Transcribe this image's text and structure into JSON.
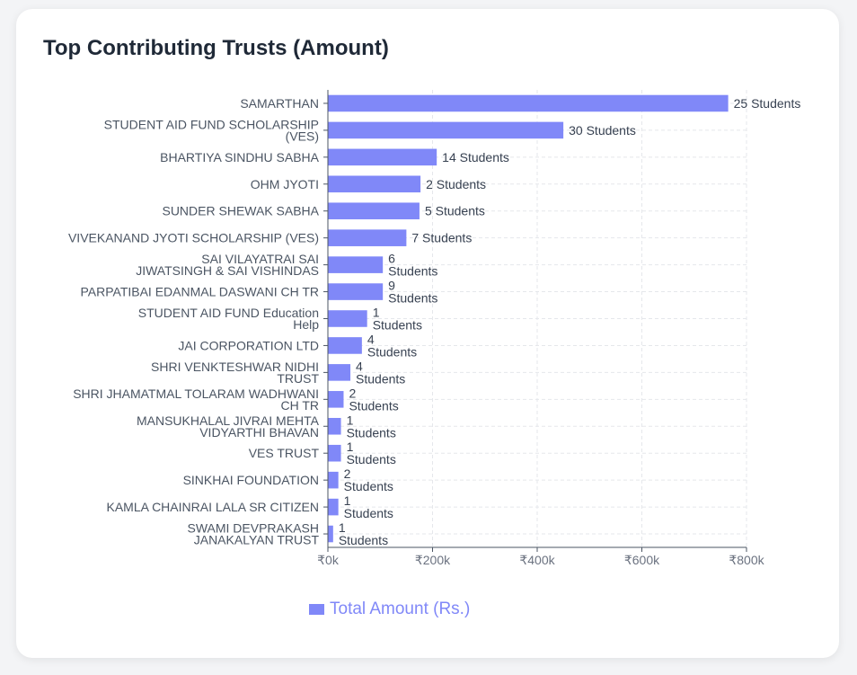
{
  "card": {
    "title": "Top Contributing Trusts (Amount)"
  },
  "legend": {
    "label": "Total Amount (Rs.)"
  },
  "colors": {
    "bar": "#8088f8",
    "grid": "#e5e7eb",
    "axis": "#4b5563",
    "label": "#4b5563",
    "tick": "#6b7280"
  },
  "chart_data": {
    "type": "bar",
    "orientation": "horizontal",
    "title": "Top Contributing Trusts (Amount)",
    "xlim": [
      0,
      800000
    ],
    "x_ticks": [
      {
        "value": 0,
        "label": "₹0k"
      },
      {
        "value": 200000,
        "label": "₹200k"
      },
      {
        "value": 400000,
        "label": "₹400k"
      },
      {
        "value": 600000,
        "label": "₹600k"
      },
      {
        "value": 800000,
        "label": "₹800k"
      }
    ],
    "grid": true,
    "legend_position": "bottom",
    "categories": [
      [
        "SAMARTHAN"
      ],
      [
        "STUDENT AID FUND SCHOLARSHIP",
        "(VES)"
      ],
      [
        "BHARTIYA SINDHU SABHA"
      ],
      [
        "OHM JYOTI"
      ],
      [
        "SUNDER SHEWAK SABHA"
      ],
      [
        "VIVEKANAND JYOTI SCHOLARSHIP (VES)"
      ],
      [
        "SAI VILAYATRAI SAI",
        "JIWATSINGH & SAI VISHINDAS"
      ],
      [
        "PARPATIBAI EDANMAL DASWANI CH TR"
      ],
      [
        "STUDENT AID FUND Education",
        "Help"
      ],
      [
        "JAI CORPORATION LTD"
      ],
      [
        "SHRI VENKTESHWAR NIDHI",
        "TRUST"
      ],
      [
        "SHRI JHAMATMAL TOLARAM WADHWANI",
        "CH TR"
      ],
      [
        "MANSUKHALAL JIVRAI MEHTA",
        "VIDYARTHI BHAVAN"
      ],
      [
        "VES TRUST"
      ],
      [
        "SINKHAI FOUNDATION"
      ],
      [
        "KAMLA CHAINRAI LALA SR CITIZEN"
      ],
      [
        "SWAMI DEVPRAKASH",
        "JANAKALYAN TRUST"
      ]
    ],
    "series": [
      {
        "name": "Total Amount (Rs.)",
        "values": [
          765000,
          450000,
          208000,
          177000,
          175000,
          150000,
          105000,
          105000,
          75000,
          65000,
          43000,
          30000,
          25000,
          25000,
          20000,
          20000,
          10000
        ]
      }
    ],
    "data_labels": [
      [
        "25 Students"
      ],
      [
        "30 Students"
      ],
      [
        "14 Students"
      ],
      [
        "2 Students"
      ],
      [
        "5 Students"
      ],
      [
        "7 Students"
      ],
      [
        "6",
        "Students"
      ],
      [
        "9",
        "Students"
      ],
      [
        "1",
        "Students"
      ],
      [
        "4",
        "Students"
      ],
      [
        "4",
        "Students"
      ],
      [
        "2",
        "Students"
      ],
      [
        "1",
        "Students"
      ],
      [
        "1",
        "Students"
      ],
      [
        "2",
        "Students"
      ],
      [
        "1",
        "Students"
      ],
      [
        "1",
        "Students"
      ]
    ]
  }
}
